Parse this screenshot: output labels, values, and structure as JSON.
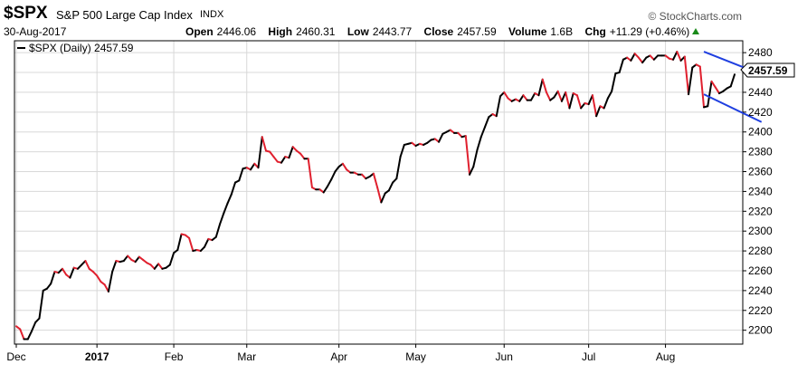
{
  "header": {
    "symbol": "$SPX",
    "name": "S&P 500 Large Cap Index",
    "exchange": "INDX",
    "brand": "© StockCharts.com",
    "date": "30-Aug-2017",
    "open_label": "Open",
    "open": "2446.06",
    "high_label": "High",
    "high": "2460.31",
    "low_label": "Low",
    "low": "2443.77",
    "close_label": "Close",
    "close": "2457.59",
    "volume_label": "Volume",
    "volume": "1.6B",
    "chg_label": "Chg",
    "chg": "+11.29 (+0.46%)"
  },
  "legend": {
    "label": "$SPX (Daily) 2457.59"
  },
  "last_value_label": "2457.59",
  "colors": {
    "up": "#000000",
    "down": "#e0202e",
    "channel": "#1f3fe0",
    "grid": "#d8d8d8",
    "last_box_border": "#000000"
  },
  "chart_data": {
    "type": "line",
    "x_tick_labels": [
      "Dec",
      "2017",
      "Feb",
      "Mar",
      "Apr",
      "May",
      "Jun",
      "Jul",
      "Aug"
    ],
    "y_ticks": [
      2200,
      2220,
      2240,
      2260,
      2280,
      2300,
      2320,
      2340,
      2360,
      2380,
      2400,
      2420,
      2440,
      2460,
      2480
    ],
    "ylim": [
      2186,
      2492
    ],
    "grid": true,
    "legend_position": "top-left",
    "series": [
      {
        "values": [
          2204,
          2201,
          2191,
          2191,
          2199,
          2208,
          2212,
          2240,
          2242,
          2247,
          2259,
          2258,
          2262,
          2256,
          2253,
          2263,
          2262,
          2266,
          2270,
          2262,
          2259,
          2255,
          2249,
          2246,
          2239,
          2259,
          2270,
          2269,
          2270,
          2275,
          2271,
          2269,
          2274,
          2271,
          2268,
          2266,
          2262,
          2267,
          2262,
          2263,
          2266,
          2278,
          2281,
          2297,
          2296,
          2293,
          2280,
          2281,
          2280,
          2284,
          2292,
          2291,
          2294,
          2307,
          2318,
          2328,
          2337,
          2349,
          2351,
          2363,
          2364,
          2362,
          2368,
          2364,
          2395,
          2381,
          2380,
          2375,
          2370,
          2369,
          2375,
          2374,
          2385,
          2381,
          2378,
          2373,
          2373,
          2344,
          2342,
          2342,
          2339,
          2345,
          2352,
          2360,
          2365,
          2368,
          2362,
          2359,
          2359,
          2357,
          2357,
          2353,
          2355,
          2358,
          2344,
          2329,
          2338,
          2341,
          2349,
          2353,
          2375,
          2387,
          2388,
          2389,
          2386,
          2388,
          2387,
          2389,
          2392,
          2393,
          2390,
          2398,
          2400,
          2402,
          2399,
          2399,
          2395,
          2396,
          2357,
          2365,
          2382,
          2395,
          2405,
          2415,
          2418,
          2416,
          2436,
          2440,
          2434,
          2431,
          2433,
          2431,
          2437,
          2432,
          2432,
          2439,
          2437,
          2453,
          2440,
          2432,
          2435,
          2441,
          2431,
          2440,
          2424,
          2439,
          2437,
          2424,
          2429,
          2428,
          2437,
          2416,
          2426,
          2424,
          2434,
          2441,
          2459,
          2460,
          2473,
          2475,
          2472,
          2479,
          2475,
          2470,
          2475,
          2477,
          2473,
          2477,
          2477,
          2477,
          2474,
          2473,
          2481,
          2472,
          2476,
          2438,
          2465,
          2468,
          2466,
          2425,
          2426,
          2451,
          2445,
          2439,
          2441,
          2444,
          2446,
          2458
        ]
      }
    ],
    "annotations": [
      {
        "type": "trendline",
        "from": [
          179,
          2481
        ],
        "to": [
          194,
          2458
        ]
      },
      {
        "type": "trendline",
        "from": [
          179,
          2438
        ],
        "to": [
          194,
          2410
        ]
      }
    ],
    "x_tick_indices": [
      0,
      21,
      41,
      60,
      84,
      104,
      127,
      149,
      169
    ]
  }
}
